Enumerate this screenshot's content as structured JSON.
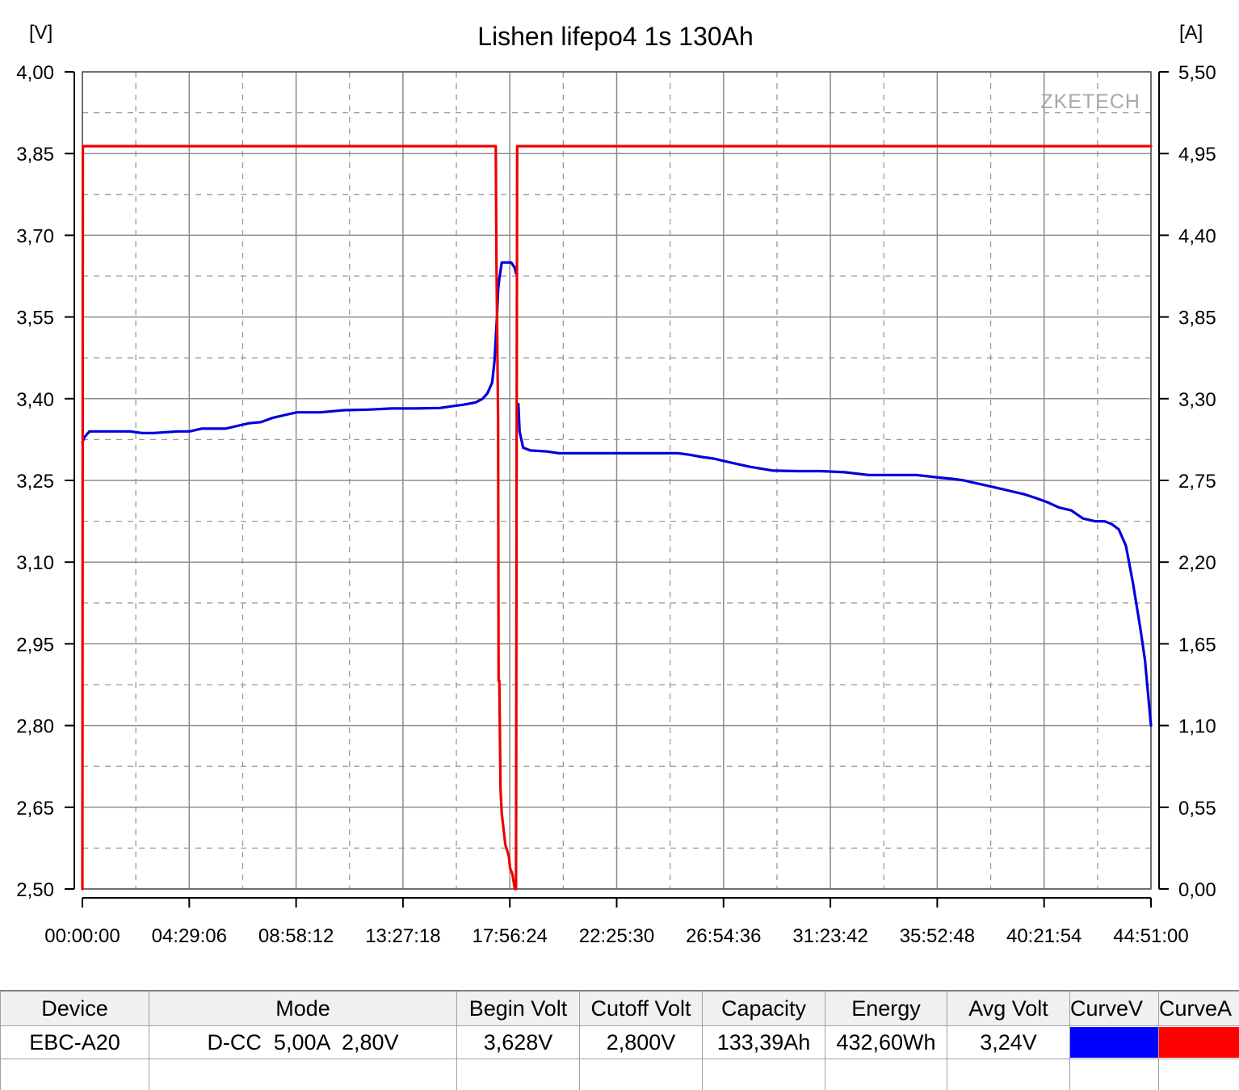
{
  "chart_data": {
    "type": "line",
    "title": "Lishen lifepo4 1s 130Ah",
    "watermark": "ZKETECH",
    "y_left_unit": "[V]",
    "y_right_unit": "[A]",
    "y_left_ticks": [
      "4,00",
      "3,85",
      "3,70",
      "3,55",
      "3,40",
      "3,25",
      "3,10",
      "2,95",
      "2,80",
      "2,65",
      "2,50"
    ],
    "y_right_ticks": [
      "5,50",
      "4,95",
      "4,40",
      "3,85",
      "3,30",
      "2,75",
      "2,20",
      "1,65",
      "1,10",
      "0,55",
      "0,00"
    ],
    "x_ticks": [
      "00:00:00",
      "04:29:06",
      "08:58:12",
      "13:27:18",
      "17:56:24",
      "22:25:30",
      "26:54:36",
      "31:23:42",
      "35:52:48",
      "40:21:54",
      "44:51:00"
    ],
    "xlim_hours": [
      0,
      44.85
    ],
    "ylim_left": [
      2.5,
      4.0
    ],
    "ylim_right": [
      0,
      5.5
    ],
    "grid": true,
    "series": [
      {
        "axis": "left",
        "color": "#0000dd",
        "x_hours": [
          0,
          0.1,
          0.3,
          1.0,
          2.0,
          2.5,
          3.0,
          4.0,
          4.5,
          5.0,
          6.0,
          6.5,
          7.0,
          7.5,
          8.0,
          8.5,
          9.0,
          10.0,
          10.5,
          11.0,
          12.0,
          13.0,
          14.0,
          15.0,
          15.5,
          16.0,
          16.5,
          16.8,
          17.0,
          17.2,
          17.3,
          17.4,
          17.45,
          17.5,
          17.6,
          18.0,
          18.15,
          18.2
        ],
        "y": [
          3.32,
          3.33,
          3.34,
          3.34,
          3.34,
          3.337,
          3.337,
          3.34,
          3.34,
          3.345,
          3.345,
          3.35,
          3.355,
          3.357,
          3.365,
          3.37,
          3.375,
          3.375,
          3.377,
          3.379,
          3.38,
          3.382,
          3.382,
          3.383,
          3.386,
          3.389,
          3.393,
          3.4,
          3.41,
          3.43,
          3.47,
          3.55,
          3.6,
          3.62,
          3.65,
          3.65,
          3.64,
          3.63
        ]
      },
      {
        "axis": "left",
        "color": "#0000dd",
        "x_hours": [
          18.3,
          18.35,
          18.5,
          18.8,
          19.5,
          20.0,
          21.0,
          22.0,
          23.0,
          24.0,
          25.0,
          25.5,
          26.0,
          26.5,
          27.5,
          28.0,
          29.0,
          30.0,
          31.0,
          32.0,
          33.0,
          34.0,
          35.0,
          36.0,
          36.5,
          37.0,
          37.5,
          38.0,
          38.5,
          39.0,
          39.5,
          40.0,
          40.5,
          41.0,
          41.5,
          42.0,
          42.5,
          42.9,
          43.2,
          43.5,
          43.8,
          44.1,
          44.4,
          44.6,
          44.85
        ],
        "y": [
          3.39,
          3.34,
          3.31,
          3.305,
          3.303,
          3.3,
          3.3,
          3.3,
          3.3,
          3.3,
          3.3,
          3.297,
          3.293,
          3.29,
          3.28,
          3.275,
          3.268,
          3.267,
          3.267,
          3.265,
          3.26,
          3.26,
          3.26,
          3.255,
          3.253,
          3.25,
          3.245,
          3.24,
          3.235,
          3.23,
          3.225,
          3.218,
          3.21,
          3.2,
          3.195,
          3.18,
          3.175,
          3.175,
          3.17,
          3.16,
          3.13,
          3.06,
          2.98,
          2.92,
          2.8
        ]
      },
      {
        "axis": "right",
        "color": "#ee0000",
        "x_hours": [
          0,
          0.02,
          17.35,
          17.38,
          17.45,
          17.47,
          17.5,
          17.55,
          17.6,
          17.75,
          17.9,
          17.95,
          18.05,
          18.15,
          18.2,
          18.22,
          18.25,
          44.85
        ],
        "y": [
          0,
          5.0,
          5.0,
          4.2,
          3.15,
          1.4,
          1.4,
          0.67,
          0.51,
          0.3,
          0.22,
          0.14,
          0.1,
          0.0,
          0.0,
          2.5,
          5.0,
          5.0
        ]
      }
    ]
  },
  "table": {
    "headers": [
      "Device",
      "Mode",
      "Begin Volt",
      "Cutoff Volt",
      "Capacity",
      "Energy",
      "Avg Volt",
      "CurveV",
      "CurveA"
    ],
    "row": {
      "device": "EBC-A20",
      "mode": "D-CC  5,00A  2,80V",
      "begin_volt": "3,628V",
      "cutoff_volt": "2,800V",
      "capacity": "133,39Ah",
      "energy": "432,60Wh",
      "avg_volt": "3,24V",
      "curve_v_color": "#0000ff",
      "curve_a_color": "#ff0000"
    }
  }
}
